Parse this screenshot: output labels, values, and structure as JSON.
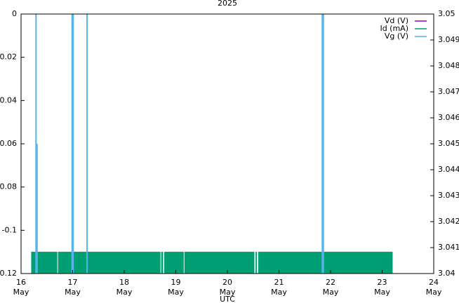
{
  "chart_data": {
    "type": "line",
    "title": "2025",
    "xlabel": "UTC",
    "xlim": [
      16,
      24
    ],
    "xticks": [
      {
        "value": 16,
        "label": "16 May"
      },
      {
        "value": 17,
        "label": "17 May"
      },
      {
        "value": 18,
        "label": "18 May"
      },
      {
        "value": 19,
        "label": "19 May"
      },
      {
        "value": 20,
        "label": "20 May"
      },
      {
        "value": 21,
        "label": "21 May"
      },
      {
        "value": 22,
        "label": "22 May"
      },
      {
        "value": 23,
        "label": "23 May"
      },
      {
        "value": 24,
        "label": "24 May"
      }
    ],
    "ylim": [
      -0.12,
      0
    ],
    "yticks": [
      -0.12,
      -0.1,
      -0.08,
      -0.06,
      -0.04,
      -0.02,
      0
    ],
    "y2lim": [
      3.04,
      3.05
    ],
    "y2ticks": [
      3.04,
      3.041,
      3.042,
      3.043,
      3.044,
      3.045,
      3.046,
      3.047,
      3.048,
      3.049,
      3.05
    ],
    "legend": "top-right",
    "series": [
      {
        "name": "Vd (V)",
        "color": "#9400d3",
        "x": [],
        "values": []
      },
      {
        "name": "Id (mA)",
        "color": "#009e73",
        "fill": true,
        "x": [
          16.2,
          16.7,
          null,
          16.72,
          18.7,
          null,
          18.72,
          18.75,
          null,
          18.78,
          19.15,
          null,
          19.17,
          20.52,
          null,
          20.55,
          20.57,
          null,
          20.6,
          23.2
        ],
        "values": [
          -0.11,
          -0.11,
          null,
          -0.11,
          -0.11,
          null,
          -0.11,
          -0.11,
          null,
          -0.11,
          -0.11,
          null,
          -0.11,
          -0.11,
          null,
          -0.11,
          -0.11,
          null,
          -0.11,
          -0.11
        ]
      },
      {
        "name": "Vg (V)",
        "color": "#56b4e9",
        "axis": "y2",
        "x": [
          16.29,
          16.29,
          null,
          16.31,
          16.31,
          null,
          16.99,
          16.99,
          null,
          17.01,
          17.01,
          null,
          17.28,
          17.28,
          null,
          21.84,
          21.84,
          null,
          21.86,
          21.86
        ],
        "values": [
          3.05,
          3.04,
          null,
          3.045,
          3.04,
          null,
          3.05,
          3.04,
          null,
          3.05,
          3.04,
          null,
          3.05,
          3.04,
          null,
          3.05,
          3.04,
          null,
          3.05,
          3.04
        ]
      }
    ]
  }
}
